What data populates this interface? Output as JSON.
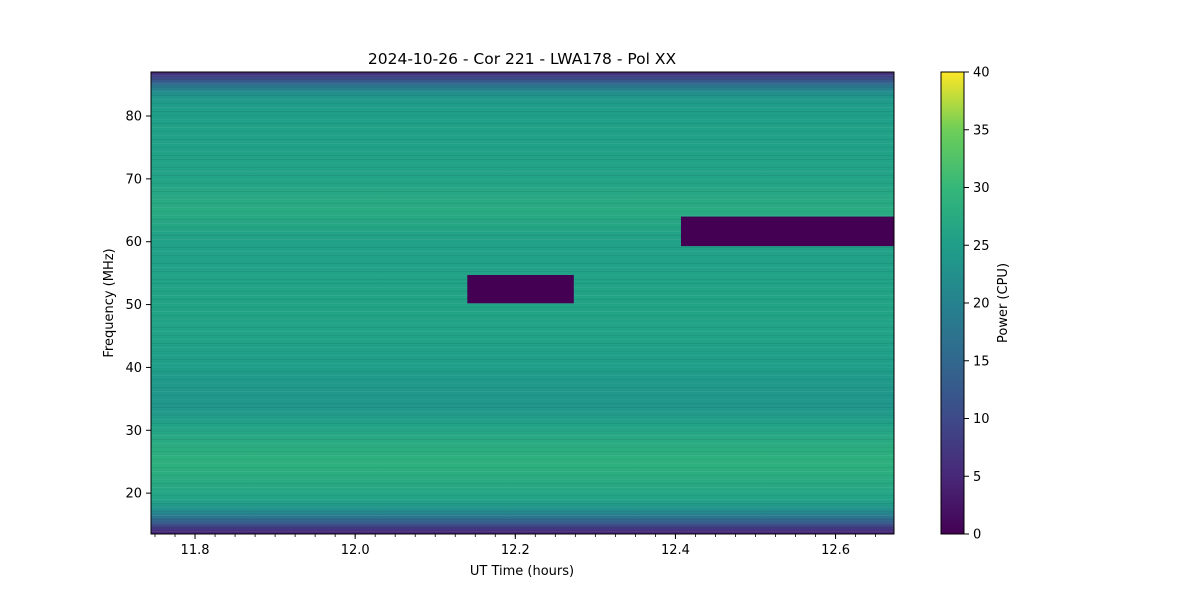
{
  "chart_data": {
    "type": "heatmap",
    "title": "2024-10-26 - Cor 221 - LWA178 - Pol XX",
    "xlabel": "UT Time (hours)",
    "ylabel": "Frequency (MHz)",
    "xlim": [
      11.745,
      12.673
    ],
    "ylim": [
      13.5,
      87.0
    ],
    "x_ticks": [
      11.8,
      12.0,
      12.2,
      12.4,
      12.6
    ],
    "x_tick_labels": [
      "11.8",
      "12.0",
      "12.2",
      "12.4",
      "12.6"
    ],
    "y_ticks": [
      20,
      30,
      40,
      50,
      60,
      70,
      80
    ],
    "y_tick_labels": [
      "20",
      "30",
      "40",
      "50",
      "60",
      "70",
      "80"
    ],
    "colormap": "viridis",
    "colorbar": {
      "label": "Power (CPU)",
      "range": [
        0,
        40
      ],
      "ticks": [
        0,
        5,
        10,
        15,
        20,
        25,
        30,
        35,
        40
      ],
      "tick_labels": [
        "0",
        "5",
        "10",
        "15",
        "20",
        "25",
        "30",
        "35",
        "40"
      ]
    },
    "frequency_profile": [
      {
        "freq": 13.5,
        "power": 4
      },
      {
        "freq": 14.5,
        "power": 8
      },
      {
        "freq": 15.5,
        "power": 14
      },
      {
        "freq": 16.5,
        "power": 19
      },
      {
        "freq": 17.5,
        "power": 23
      },
      {
        "freq": 19,
        "power": 26
      },
      {
        "freq": 21,
        "power": 27
      },
      {
        "freq": 23,
        "power": 28
      },
      {
        "freq": 25,
        "power": 28.5
      },
      {
        "freq": 27,
        "power": 28
      },
      {
        "freq": 29,
        "power": 27
      },
      {
        "freq": 31,
        "power": 25.5
      },
      {
        "freq": 33,
        "power": 24
      },
      {
        "freq": 35,
        "power": 23.5
      },
      {
        "freq": 37,
        "power": 24
      },
      {
        "freq": 40,
        "power": 25
      },
      {
        "freq": 44,
        "power": 25.5
      },
      {
        "freq": 48,
        "power": 26
      },
      {
        "freq": 52,
        "power": 26
      },
      {
        "freq": 56,
        "power": 25.5
      },
      {
        "freq": 60,
        "power": 25.5
      },
      {
        "freq": 63,
        "power": 26.5
      },
      {
        "freq": 65,
        "power": 27.5
      },
      {
        "freq": 67,
        "power": 27
      },
      {
        "freq": 70,
        "power": 26
      },
      {
        "freq": 74,
        "power": 25.5
      },
      {
        "freq": 78,
        "power": 25.5
      },
      {
        "freq": 81,
        "power": 25
      },
      {
        "freq": 83,
        "power": 24
      },
      {
        "freq": 84,
        "power": 21
      },
      {
        "freq": 85,
        "power": 16
      },
      {
        "freq": 86,
        "power": 10
      },
      {
        "freq": 87,
        "power": 5
      }
    ],
    "masked_regions": [
      {
        "t_start": 12.14,
        "t_end": 12.273,
        "f_start": 50.2,
        "f_end": 54.7,
        "power": 0
      },
      {
        "t_start": 12.407,
        "t_end": 12.673,
        "f_start": 59.3,
        "f_end": 64.0,
        "power": 0
      }
    ]
  }
}
